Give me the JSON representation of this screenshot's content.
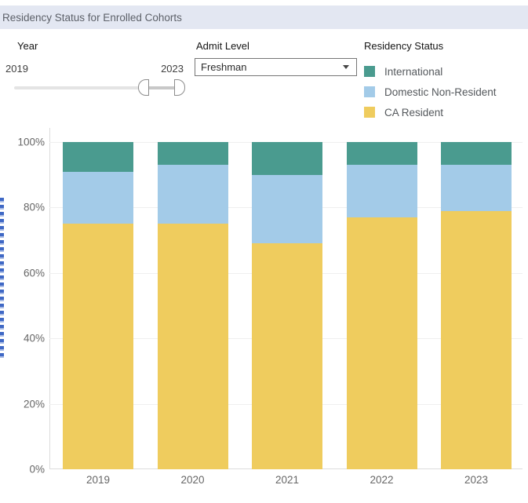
{
  "window": {
    "title": "Residency Status for Enrolled Cohorts"
  },
  "filters": {
    "year": {
      "label": "Year",
      "range_start": "2019",
      "range_end": "2023",
      "control": "range-slider"
    },
    "admit_level": {
      "label": "Admit Level",
      "selected": "Freshman",
      "control": "dropdown"
    }
  },
  "legend": {
    "title": "Residency Status",
    "items": [
      {
        "label": "International",
        "color": "#4a9b8f"
      },
      {
        "label": "Domestic Non-Resident",
        "color": "#a3cbe8"
      },
      {
        "label": "CA Resident",
        "color": "#efcc5e"
      }
    ]
  },
  "chart_data": {
    "type": "bar",
    "stacked": true,
    "title": "Residency Status for Enrolled Cohorts",
    "categories": [
      "2019",
      "2020",
      "2021",
      "2022",
      "2023"
    ],
    "series": [
      {
        "name": "CA Resident",
        "color": "#efcc5e",
        "values": [
          75,
          75,
          69,
          77,
          79
        ]
      },
      {
        "name": "Domestic Non-Resident",
        "color": "#a3cbe8",
        "values": [
          16,
          18,
          21,
          16,
          14
        ]
      },
      {
        "name": "International",
        "color": "#4a9b8f",
        "values": [
          9,
          7,
          10,
          7,
          7
        ]
      }
    ],
    "stack_order": "bottom-to-top",
    "unit": "%",
    "ylim": [
      0,
      100
    ],
    "yticks": [
      "0%",
      "20%",
      "40%",
      "60%",
      "80%",
      "100%"
    ],
    "xlabel": "",
    "ylabel": "",
    "grid": true,
    "legend_position": "top-right"
  }
}
